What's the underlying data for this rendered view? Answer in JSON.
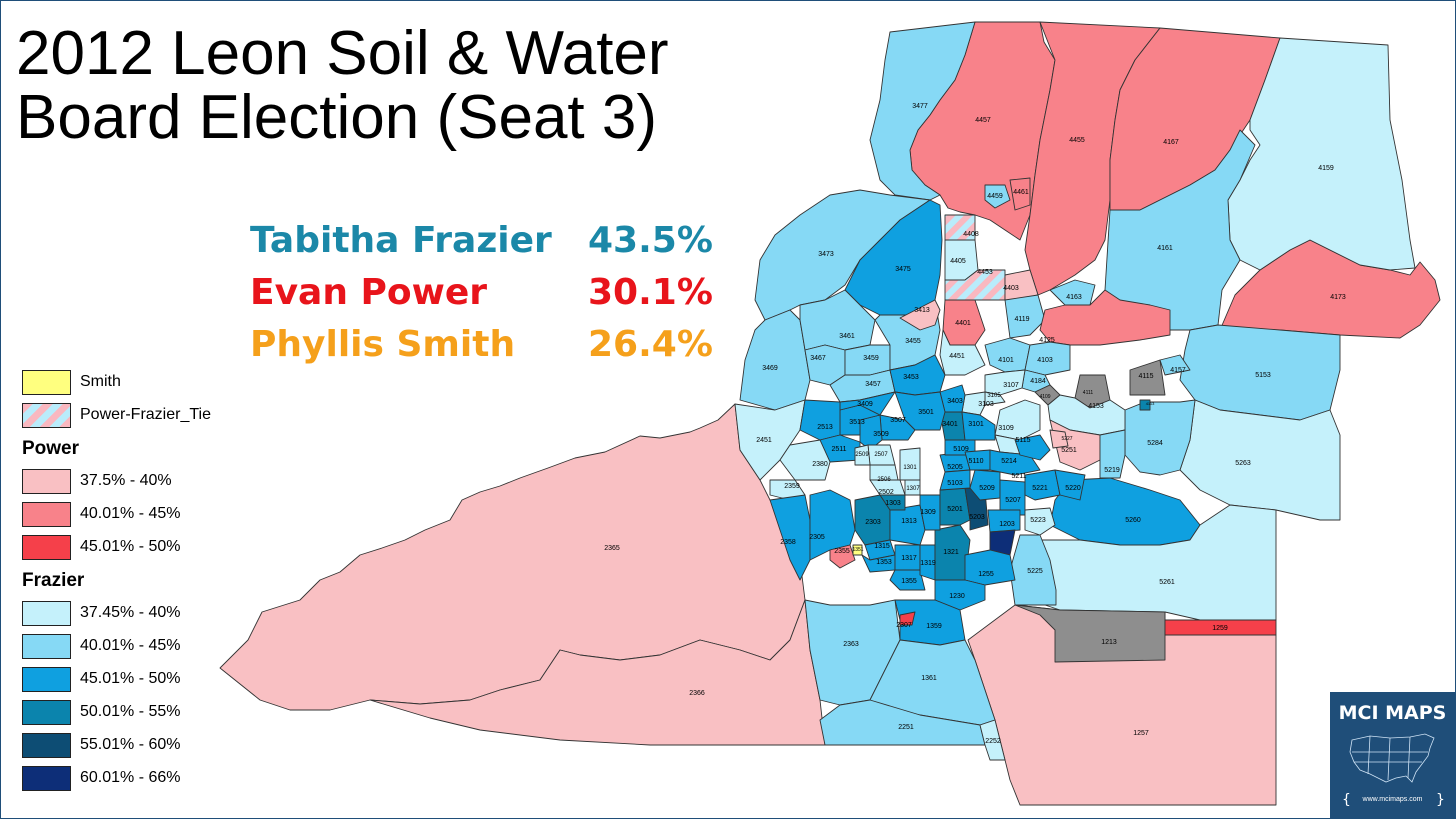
{
  "title_line1": "2012 Leon Soil & Water",
  "title_line2": "Board Election (Seat 3)",
  "results": [
    {
      "name": "Tabitha Frazier",
      "pct": "43.5%",
      "color": "#1b88a8"
    },
    {
      "name": "Evan Power",
      "pct": "30.1%",
      "color": "#e8141b"
    },
    {
      "name": "Phyllis Smith",
      "pct": "26.4%",
      "color": "#f5a01b"
    }
  ],
  "legend": {
    "smith": {
      "label": "Smith",
      "color": "#ffff7f"
    },
    "tie": {
      "label": "Power-Frazier_Tie",
      "pattern": "diagonal-stripes",
      "colors": [
        "#f9b8c0",
        "#b9ecfb"
      ]
    },
    "power_title": "Power",
    "power": [
      {
        "label": "37.5% - 40%",
        "color": "#f9c0c3"
      },
      {
        "label": "40.01% - 45%",
        "color": "#f8828a"
      },
      {
        "label": "45.01% - 50%",
        "color": "#f5404a"
      }
    ],
    "frazier_title": "Frazier",
    "frazier": [
      {
        "label": "37.45% - 40%",
        "color": "#c5f1fb"
      },
      {
        "label": "40.01% - 45%",
        "color": "#86d9f5"
      },
      {
        "label": "45.01% - 50%",
        "color": "#0fa0e0"
      },
      {
        "label": "50.01% - 55%",
        "color": "#0b84ad"
      },
      {
        "label": "55.01% - 60%",
        "color": "#0d4d74"
      },
      {
        "label": "60.01% - 66%",
        "color": "#0d2e78"
      }
    ]
  },
  "other_color": "#8e8e8e",
  "precincts": {
    "p2365": "2365",
    "p2366": "2366",
    "p1257": "1257",
    "p2363": "2363",
    "p1361": "1361",
    "p2251": "2251",
    "p2252": "2252",
    "p1213": "1213",
    "p1259": "1259",
    "p5261": "5261",
    "p5263": "5263",
    "p5260": "5260",
    "p5225": "5225",
    "p5153": "5153",
    "p4173": "4173",
    "p4161": "4161",
    "p4159": "4159",
    "p4167": "4167",
    "p4455": "4455",
    "p4457": "4457",
    "p3477": "3477",
    "p3473": "3473",
    "p3475": "3475",
    "p3469": "3469",
    "p3461": "3461",
    "p3467": "3467",
    "p3459": "3459",
    "p3455": "3455",
    "p3457": "3457",
    "p3453": "3453",
    "p3413": "3413",
    "p4401": "4401",
    "p4451": "4451",
    "p4405": "4405",
    "p4408": "4408",
    "p4453": "4453",
    "p4403": "4403",
    "p4459": "4459",
    "p4461": "4461",
    "p4163": "4163",
    "p4119": "4119",
    "p4125": "4125",
    "p4101": "4101",
    "p4103": "4103",
    "p4184": "4184",
    "p4115": "4115",
    "p4157": "4157",
    "p4153": "4153",
    "p4111": "4111",
    "p4109": "4109",
    "p3107": "3107",
    "p3105": "3105",
    "p3103": "3103",
    "p3109": "3109",
    "p3403": "3403",
    "p3401": "3401",
    "p3101": "3101",
    "p3501": "3501",
    "p3507": "3507",
    "p3509": "3509",
    "p3513": "3513",
    "p3409": "3409",
    "p2513": "2513",
    "p2451": "2451",
    "p2511": "2511",
    "p2380": "2380",
    "p2359": "2359",
    "p2358": "2358",
    "p2305": "2305",
    "p2355": "2355",
    "p2303": "2303",
    "p1315": "1315",
    "p1353": "1353",
    "p1355": "1355",
    "p1317": "1317",
    "p1319": "1319",
    "p1321": "1321",
    "p1313": "1313",
    "p1309": "1309",
    "p1303": "1303",
    "p2502": "2502",
    "p2506": "2506",
    "p2507": "2507",
    "p2509": "2509",
    "p1301": "1301",
    "p1307": "1307",
    "p5201": "5201",
    "p5203": "5203",
    "p5205": "5205",
    "p5105": "5105",
    "p5103": "5103",
    "p5109": "5109",
    "p5110": "5110",
    "p5115": "5115",
    "p5214": "5214",
    "p5211": "5211",
    "p5209": "5209",
    "p5207": "5207",
    "p5221": "5221",
    "p5220": "5220",
    "p5223": "5223",
    "p1203": "1203",
    "p1255": "1255",
    "p1230": "1230",
    "p1359": "1359",
    "p2307": "2307",
    "p5251": "5251",
    "p5219": "5219",
    "p5284": "5284",
    "p5227": "5227",
    "p4113": "4113",
    "p1351": "1351"
  },
  "logo": {
    "title": "MCI MAPS",
    "url": "www.mcimaps.com",
    "bg": "#1f4e79"
  }
}
